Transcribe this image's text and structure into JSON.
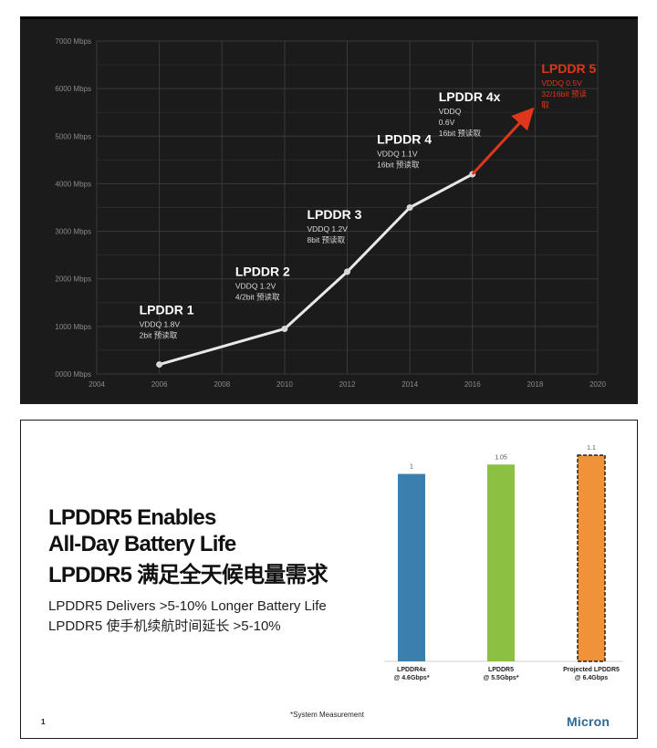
{
  "top_chart": {
    "y_tick_labels": [
      "0000 Mbps",
      "1000 Mbps",
      "2000 Mbps",
      "3000 Mbps",
      "4000 Mbps",
      "5000 Mbps",
      "6000 Mbps",
      "7000 Mbps"
    ],
    "x_tick_labels": [
      "2004",
      "2006",
      "2008",
      "2010",
      "2012",
      "2014",
      "2016",
      "2018",
      "2020"
    ],
    "colors": {
      "background": "#1b1b1b",
      "grid": "#3a3a3a",
      "line": "#e8e8e8",
      "projected": "#e0361c"
    }
  },
  "bottom_slide": {
    "headline_lines": [
      "LPDDR5 Enables",
      "All-Day Battery Life",
      "LPDDR5 满足全天候电量需求"
    ],
    "sub_lines": [
      "LPDDR5 Delivers >5-10% Longer Battery Life",
      "LPDDR5 使手机续航时间延长 >5-10%"
    ],
    "footnote": "*System Measurement",
    "page_number": "1",
    "logo_text": "Micron"
  },
  "chart_data": [
    {
      "type": "line",
      "title": "",
      "xlabel": "",
      "ylabel": "",
      "x_range": [
        2004,
        2020
      ],
      "y_range": [
        0,
        7000
      ],
      "grid": true,
      "series": [
        {
          "points": [
            [
              2006,
              200
            ],
            [
              2010,
              950
            ],
            [
              2012,
              2150
            ],
            [
              2014,
              3500
            ],
            [
              2016,
              4200
            ]
          ],
          "color": "#e8e8e8"
        },
        {
          "points": [
            [
              2016,
              4200
            ],
            [
              2018,
              5600
            ]
          ],
          "color": "#e0361c",
          "arrow": true
        }
      ],
      "annotations": [
        {
          "x": 2006,
          "y": 200,
          "title": "LPDDR 1",
          "lines": [
            "VDDQ 1.8V",
            "2bit 预读取"
          ]
        },
        {
          "x": 2010,
          "y": 950,
          "title": "LPDDR 2",
          "lines": [
            "VDDQ 1.2V",
            "4/2bit 预读取"
          ]
        },
        {
          "x": 2012,
          "y": 2150,
          "title": "LPDDR 3",
          "lines": [
            "VDDQ 1.2V",
            "8bit 预读取"
          ]
        },
        {
          "x": 2014,
          "y": 3500,
          "title": "LPDDR 4",
          "lines": [
            "VDDQ 1.1V",
            "16bit 预读取"
          ]
        },
        {
          "x": 2016,
          "y": 4200,
          "title": "LPDDR 4x",
          "lines": [
            "VDDQ",
            "0.6V",
            "16bit 预读取"
          ]
        },
        {
          "x": 2018,
          "y": 5600,
          "title": "LPDDR 5",
          "lines": [
            "VDDQ 0.5V",
            "32/16bit 预读",
            "取"
          ],
          "highlight": true
        }
      ]
    },
    {
      "type": "bar",
      "title": "",
      "categories": [
        [
          "LPDDR4x",
          "@ 4.6Gbps*"
        ],
        [
          "LPDDR5",
          "@ 5.5Gbps*"
        ],
        [
          "Projected LPDDR5",
          "@ 6.4Gbps"
        ]
      ],
      "values": [
        1,
        1.05,
        1.1
      ],
      "value_labels": [
        "1",
        "1.05",
        "1.1"
      ],
      "colors": [
        "#3a7fad",
        "#8bc043",
        "#f0923a"
      ],
      "dashed_outline": [
        false,
        false,
        true
      ],
      "ylim": [
        0,
        1.1
      ]
    }
  ]
}
